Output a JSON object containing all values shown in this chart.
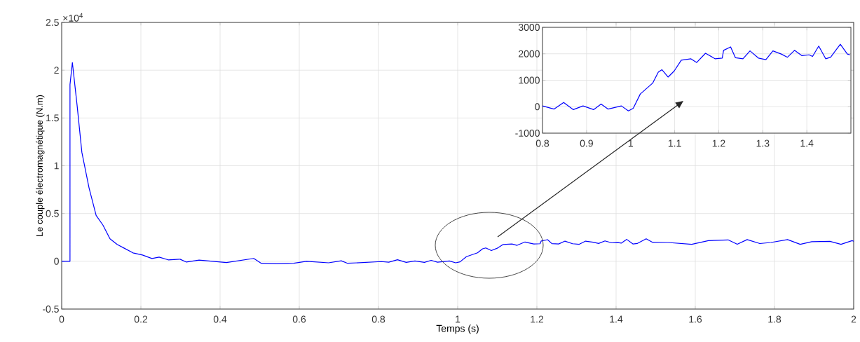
{
  "chart_data": [
    {
      "type": "line",
      "xlabel": "Temps (s)",
      "ylabel": "Le couple électromagnétique (N.m)",
      "annotations": [
        "×10$^{4}$"
      ],
      "xlim": [
        0,
        2
      ],
      "ylim": [
        -0.5,
        2.5
      ],
      "xticks": [
        0,
        0.2,
        0.4,
        0.6,
        0.8,
        1,
        1.2,
        1.4,
        1.6,
        1.8,
        2
      ],
      "yticks": [
        -0.5,
        0,
        0.5,
        1,
        1.5,
        2,
        2.5
      ],
      "grid": true,
      "series": [
        {
          "color": "#0000ff",
          "x": [
            0,
            0.021,
            0.021,
            0.027,
            0.039,
            0.051,
            0.069,
            0.087,
            0.104,
            0.122,
            0.14,
            0.157,
            0.18,
            0.204,
            0.228,
            0.246,
            0.269,
            0.299,
            0.315,
            0.347,
            0.416,
            0.485,
            0.504,
            0.542,
            0.586,
            0.618,
            0.674,
            0.706,
            0.722,
            0.807,
            0.826,
            0.848,
            0.87,
            0.892,
            0.916,
            0.933,
            0.949,
            0.979,
            0.995,
            1.006,
            1.022,
            1.05,
            1.063,
            1.071,
            1.085,
            1.099,
            1.115,
            1.137,
            1.15,
            1.17,
            1.192,
            1.208,
            1.211,
            1.227,
            1.238,
            1.255,
            1.271,
            1.29,
            1.307,
            1.323,
            1.342,
            1.356,
            1.372,
            1.389,
            1.405,
            1.413,
            1.427,
            1.443,
            1.454,
            1.476,
            1.492,
            1.531,
            1.591,
            1.633,
            1.683,
            1.706,
            1.731,
            1.763,
            1.791,
            1.833,
            1.865,
            1.894,
            1.94,
            1.968,
            1.996,
            2
          ],
          "values": [
            0,
            0,
            1.85,
            2.08,
            1.63,
            1.14,
            0.77,
            0.48,
            0.38,
            0.235,
            0.176,
            0.139,
            0.088,
            0.066,
            0.029,
            0.044,
            0.015,
            0.022,
            -0.008,
            0.013,
            -0.013,
            0.03,
            -0.021,
            -0.026,
            -0.021,
            0,
            -0.016,
            0.005,
            -0.021,
            -0.003,
            -0.009,
            0.016,
            -0.011,
            0.003,
            -0.011,
            0.01,
            -0.009,
            0.003,
            -0.016,
            -0.006,
            0.048,
            0.089,
            0.131,
            0.14,
            0.112,
            0.135,
            0.176,
            0.181,
            0.167,
            0.202,
            0.181,
            0.184,
            0.213,
            0.226,
            0.185,
            0.181,
            0.211,
            0.184,
            0.178,
            0.211,
            0.199,
            0.187,
            0.213,
            0.193,
            0.196,
            0.19,
            0.229,
            0.181,
            0.187,
            0.236,
            0.199,
            0.197,
            0.178,
            0.216,
            0.224,
            0.178,
            0.227,
            0.186,
            0.197,
            0.227,
            0.178,
            0.205,
            0.209,
            0.178,
            0.216,
            0.21
          ]
        }
      ]
    },
    {
      "type": "line",
      "xlim": [
        0.8,
        1.5
      ],
      "ylim": [
        -1000,
        3000
      ],
      "xticks": [
        0.8,
        0.9,
        1,
        1.1,
        1.2,
        1.3,
        1.4
      ],
      "yticks": [
        -1000,
        0,
        1000,
        2000,
        3000
      ],
      "grid": true,
      "series": [
        {
          "color": "#0000ff",
          "x": [
            0.8,
            0.826,
            0.848,
            0.87,
            0.892,
            0.916,
            0.933,
            0.949,
            0.979,
            0.995,
            1.006,
            1.022,
            1.05,
            1.063,
            1.071,
            1.085,
            1.099,
            1.115,
            1.137,
            1.15,
            1.17,
            1.192,
            1.208,
            1.211,
            1.227,
            1.238,
            1.255,
            1.271,
            1.29,
            1.307,
            1.323,
            1.342,
            1.356,
            1.372,
            1.389,
            1.405,
            1.413,
            1.427,
            1.443,
            1.454,
            1.476,
            1.492,
            1.498
          ],
          "values": [
            30,
            -90,
            160,
            -110,
            30,
            -110,
            100,
            -90,
            30,
            -160,
            -60,
            480,
            890,
            1310,
            1400,
            1120,
            1350,
            1760,
            1810,
            1670,
            2020,
            1810,
            1840,
            2130,
            2260,
            1850,
            1810,
            2110,
            1840,
            1780,
            2110,
            1990,
            1870,
            2130,
            1930,
            1960,
            1900,
            2290,
            1810,
            1870,
            2360,
            1990,
            1960
          ]
        }
      ]
    }
  ]
}
